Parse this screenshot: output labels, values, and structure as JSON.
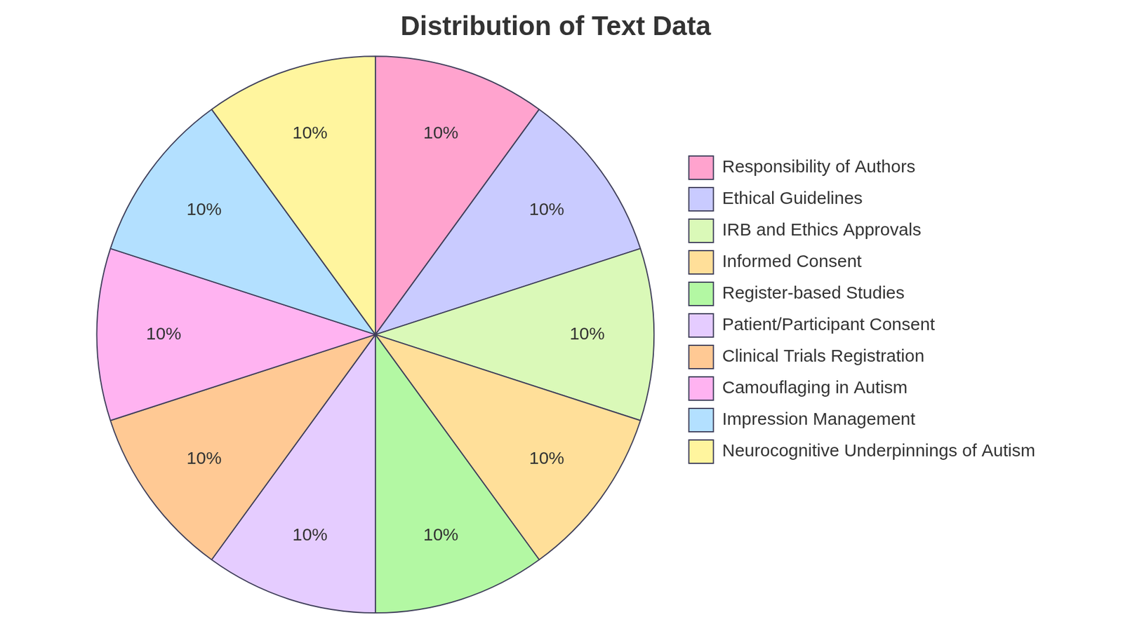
{
  "chart_data": {
    "type": "pie",
    "title": "Distribution of Text Data",
    "categories": [
      "Responsibility of Authors",
      "Ethical Guidelines",
      "IRB and Ethics Approvals",
      "Informed Consent",
      "Register-based Studies",
      "Patient/Participant Consent",
      "Clinical Trials Registration",
      "Camouflaging in Autism",
      "Impression Management",
      "Neurocognitive Underpinnings of Autism"
    ],
    "values": [
      10,
      10,
      10,
      10,
      10,
      10,
      10,
      10,
      10,
      10
    ],
    "value_labels": [
      "10%",
      "10%",
      "10%",
      "10%",
      "10%",
      "10%",
      "10%",
      "10%",
      "10%",
      "10%"
    ],
    "colors": [
      "#ffa3ce",
      "#c9cbff",
      "#daf9b8",
      "#ffdf99",
      "#b3f8a3",
      "#e5ccff",
      "#ffc994",
      "#ffb3f1",
      "#b3e0ff",
      "#fff59e"
    ],
    "data_labels": true,
    "legend": "right"
  }
}
